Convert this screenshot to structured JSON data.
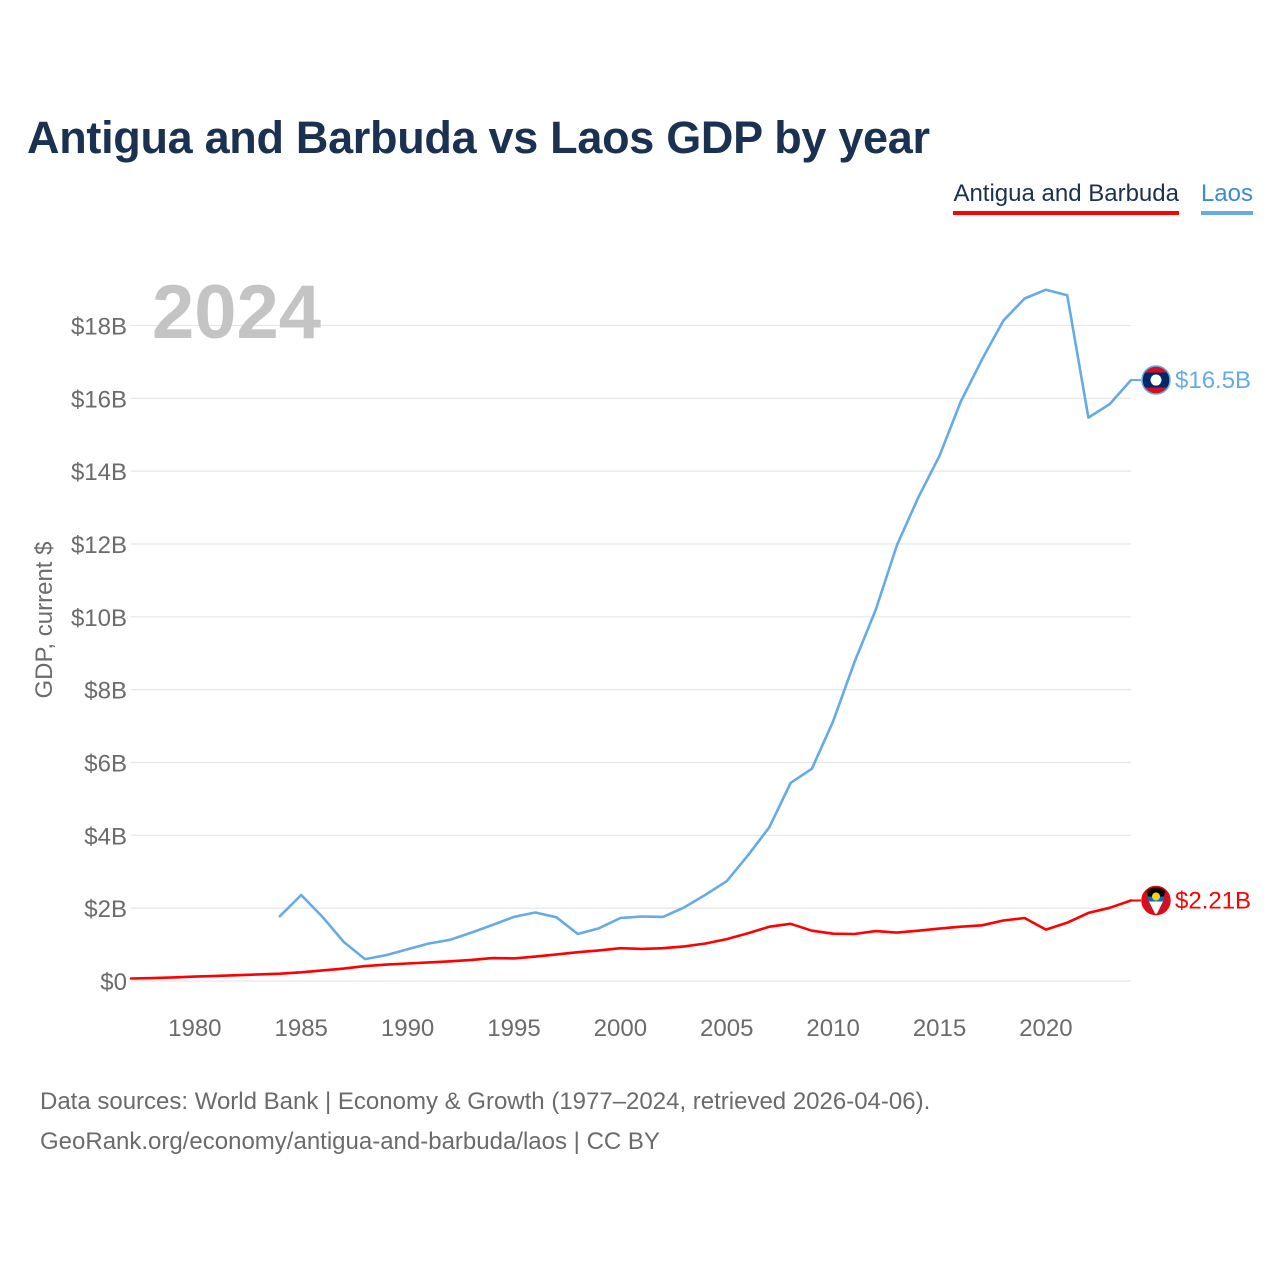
{
  "title": "Antigua and Barbuda vs Laos GDP by year",
  "legend": [
    {
      "label": "Antigua and Barbuda",
      "color": "#ff0000"
    },
    {
      "label": "Laos",
      "color": "#66aae6"
    }
  ],
  "year_watermark": "2024",
  "footer": {
    "line1": "Data sources: World Bank | Economy & Growth (1977–2024, retrieved 2026-04-06).",
    "line2": "GeoRank.org/economy/antigua-and-barbuda/laos | CC BY"
  },
  "chart_data": {
    "type": "line",
    "title": "Antigua and Barbuda vs Laos GDP by year",
    "xlabel": "",
    "ylabel": "GDP, current $",
    "xlim": [
      1977,
      2024
    ],
    "ylim": [
      0,
      19
    ],
    "grid": true,
    "legend_position": "top-right",
    "x_ticks": [
      1980,
      1985,
      1990,
      1995,
      2000,
      2005,
      2010,
      2015,
      2020
    ],
    "x_tick_labels": [
      "1980",
      "1985",
      "1990",
      "1995",
      "2000",
      "2005",
      "2010",
      "2015",
      "2020"
    ],
    "y_ticks": [
      0,
      2,
      4,
      6,
      8,
      10,
      12,
      14,
      16,
      18
    ],
    "y_tick_labels": [
      "$0",
      "$2B",
      "$4B",
      "$6B",
      "$8B",
      "$10B",
      "$12B",
      "$14B",
      "$16B",
      "$18B"
    ],
    "series": [
      {
        "name": "Antigua and Barbuda",
        "color": "#ff0000",
        "flag": "antigua-and-barbuda-flag",
        "end_label": "$2.21B",
        "x": [
          1977,
          1978,
          1979,
          1980,
          1981,
          1982,
          1983,
          1984,
          1985,
          1986,
          1987,
          1988,
          1989,
          1990,
          1991,
          1992,
          1993,
          1994,
          1995,
          1996,
          1997,
          1998,
          1999,
          2000,
          2001,
          2002,
          2003,
          2004,
          2005,
          2006,
          2007,
          2008,
          2009,
          2010,
          2011,
          2012,
          2013,
          2014,
          2015,
          2016,
          2017,
          2018,
          2019,
          2020,
          2021,
          2022,
          2023,
          2024
        ],
        "values": [
          0.07,
          0.08,
          0.1,
          0.12,
          0.14,
          0.16,
          0.18,
          0.2,
          0.24,
          0.29,
          0.34,
          0.41,
          0.45,
          0.48,
          0.51,
          0.54,
          0.58,
          0.63,
          0.62,
          0.67,
          0.73,
          0.79,
          0.84,
          0.9,
          0.88,
          0.9,
          0.95,
          1.03,
          1.15,
          1.31,
          1.49,
          1.57,
          1.38,
          1.3,
          1.29,
          1.37,
          1.33,
          1.38,
          1.44,
          1.49,
          1.53,
          1.66,
          1.73,
          1.41,
          1.6,
          1.87,
          2.01,
          2.21
        ]
      },
      {
        "name": "Laos",
        "color": "#66aae6",
        "flag": "laos-flag",
        "end_label": "$16.5B",
        "x": [
          1984,
          1985,
          1986,
          1987,
          1988,
          1989,
          1990,
          1991,
          1992,
          1993,
          1994,
          1995,
          1996,
          1997,
          1998,
          1999,
          2000,
          2001,
          2002,
          2003,
          2004,
          2005,
          2006,
          2007,
          2008,
          2009,
          2010,
          2011,
          2012,
          2013,
          2014,
          2015,
          2016,
          2017,
          2018,
          2019,
          2020,
          2021,
          2022,
          2023,
          2024
        ],
        "values": [
          1.78,
          2.36,
          1.76,
          1.07,
          0.6,
          0.71,
          0.87,
          1.03,
          1.13,
          1.33,
          1.54,
          1.76,
          1.88,
          1.75,
          1.29,
          1.45,
          1.73,
          1.77,
          1.76,
          2.02,
          2.37,
          2.74,
          3.45,
          4.22,
          5.44,
          5.83,
          7.13,
          8.75,
          10.19,
          11.97,
          13.27,
          14.42,
          15.91,
          17.07,
          18.13,
          18.74,
          18.98,
          18.83,
          15.47,
          15.84,
          16.5
        ]
      }
    ]
  }
}
